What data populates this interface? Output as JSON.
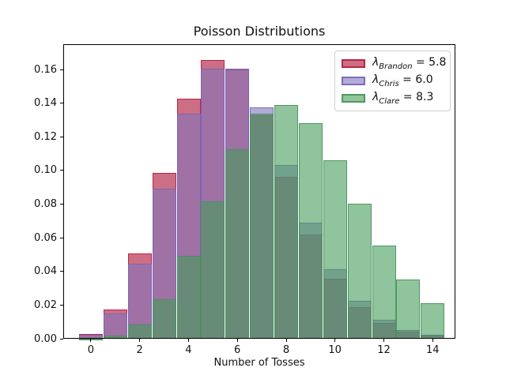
{
  "chart_data": {
    "type": "bar",
    "title": "Poisson Distributions",
    "xlabel": "Number of Tosses",
    "ylabel": "",
    "categories": [
      0,
      1,
      2,
      3,
      4,
      5,
      6,
      7,
      8,
      9,
      10,
      11,
      12,
      13,
      14
    ],
    "xlim": [
      -1.13,
      14.93
    ],
    "ylim": [
      0,
      0.175
    ],
    "bar_width": 0.97,
    "grid": false,
    "legend_position": "upper right",
    "lambda_symbol": "λ",
    "equals_sign": "=",
    "xticks": {
      "values": [
        0,
        2,
        4,
        6,
        8,
        10,
        12,
        14
      ],
      "labels": [
        "0",
        "2",
        "4",
        "6",
        "8",
        "10",
        "12",
        "14"
      ]
    },
    "yticks": {
      "values": [
        0.0,
        0.02,
        0.04,
        0.06,
        0.08,
        0.1,
        0.12,
        0.14,
        0.16
      ],
      "labels": [
        "0.00",
        "0.02",
        "0.04",
        "0.06",
        "0.08",
        "0.10",
        "0.12",
        "0.14",
        "0.16"
      ]
    },
    "series": [
      {
        "name": "Brandon",
        "lambda": "5.8",
        "fill": "rgba(172,22,57,0.62)",
        "edge": "rgba(186,26,62,0.9)",
        "values": [
          0.003,
          0.0176,
          0.0509,
          0.0985,
          0.1428,
          0.1656,
          0.1601,
          0.1326,
          0.0962,
          0.062,
          0.0359,
          0.019,
          0.0092,
          0.0041,
          0.0017
        ]
      },
      {
        "name": "Chris",
        "lambda": "6.0",
        "fill": "rgba(128,115,187,0.6)",
        "edge": "rgba(120,100,185,0.9)",
        "values": [
          0.0025,
          0.0149,
          0.0446,
          0.0892,
          0.1339,
          0.1606,
          0.1606,
          0.1377,
          0.1033,
          0.0688,
          0.0413,
          0.0225,
          0.0113,
          0.0052,
          0.0022
        ]
      },
      {
        "name": "Clare",
        "lambda": "8.3",
        "fill": "rgba(68,157,90,0.6)",
        "edge": "rgba(70,145,90,0.85)",
        "values": [
          0.0002,
          0.0021,
          0.0086,
          0.0237,
          0.0491,
          0.0815,
          0.1128,
          0.1337,
          0.1388,
          0.128,
          0.1062,
          0.0801,
          0.0554,
          0.0354,
          0.021
        ]
      }
    ]
  }
}
